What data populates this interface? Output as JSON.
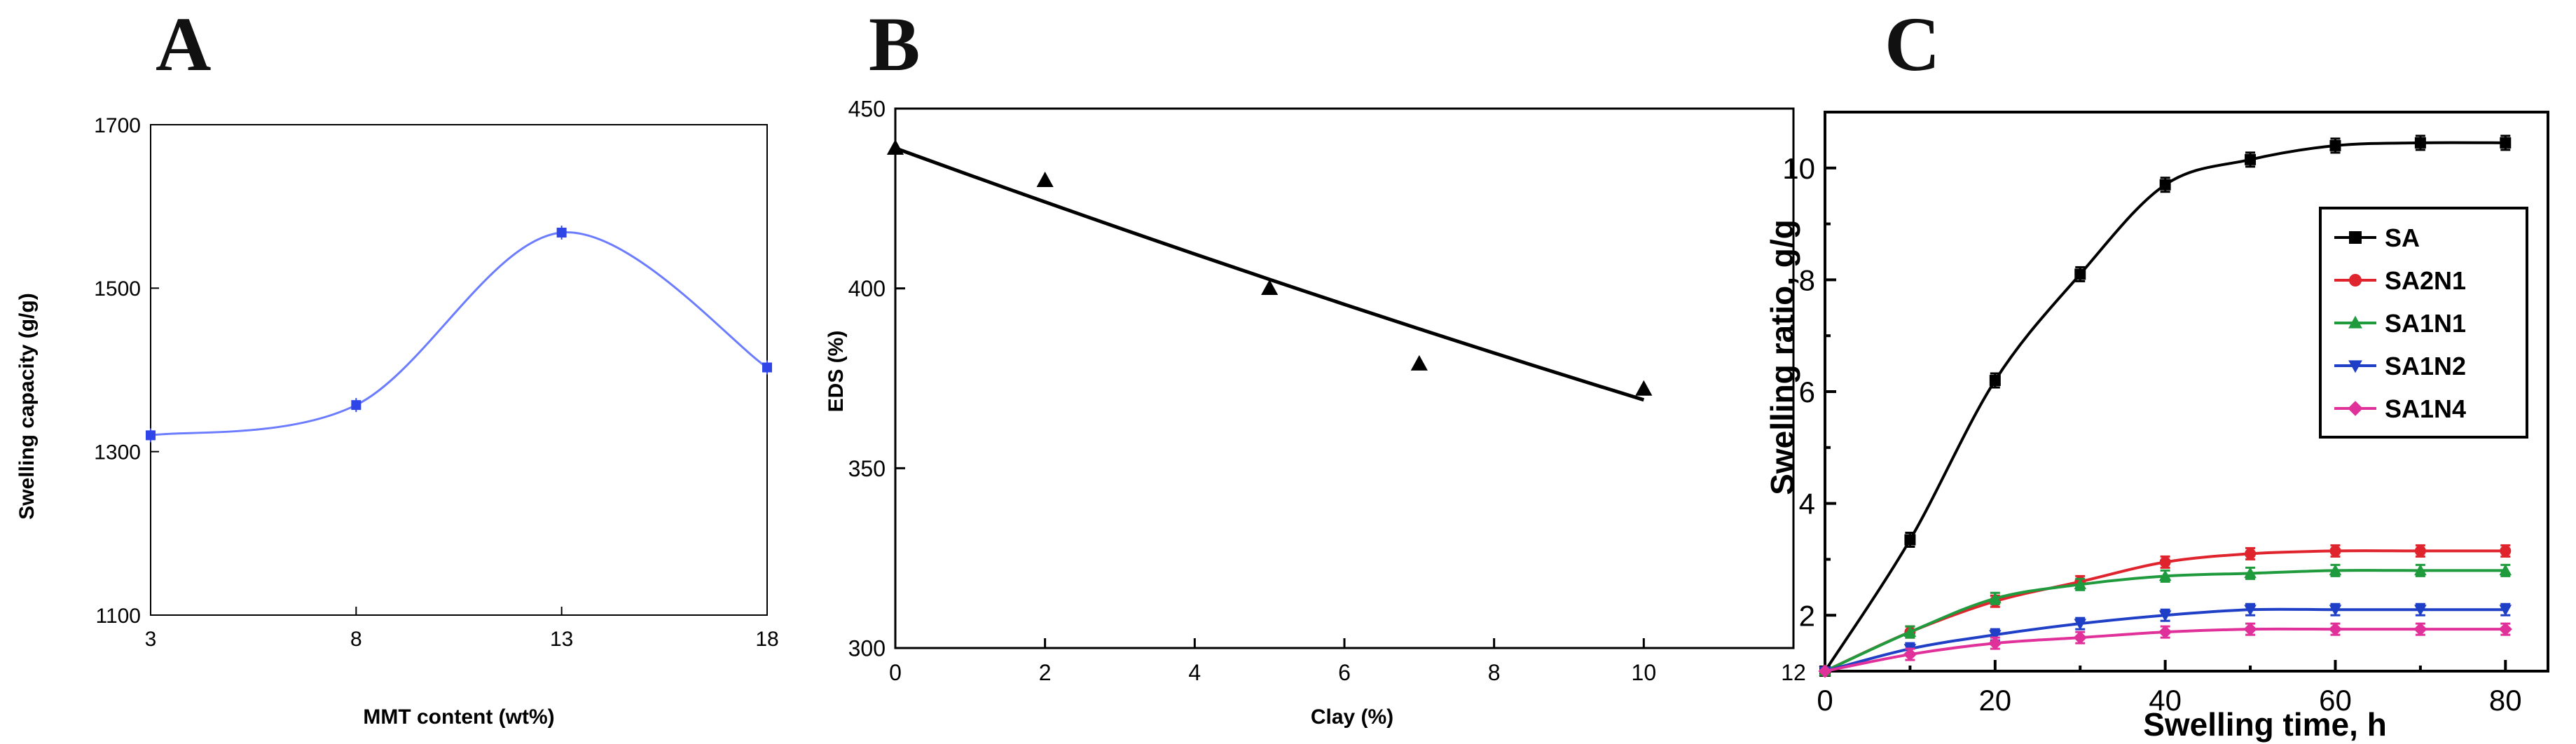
{
  "chart_data": [
    {
      "panel_label": "A",
      "type": "line",
      "xlabel": "MMT content (wt%)",
      "ylabel": "Swelling capacity (g/g)",
      "xlim": [
        3,
        18
      ],
      "ylim": [
        1100,
        1700
      ],
      "xticks": [
        3,
        8,
        13,
        18
      ],
      "yticks": [
        1100,
        1300,
        1500,
        1700
      ],
      "series": [
        {
          "x": [
            3,
            8,
            13,
            18
          ],
          "values": [
            1320,
            1357,
            1568,
            1403
          ],
          "color": "#6b7cff",
          "marker": "square"
        }
      ]
    },
    {
      "panel_label": "B",
      "type": "scatter",
      "xlabel": "Clay (%)",
      "ylabel": "EDS (%)",
      "xlim": [
        0,
        12
      ],
      "ylim": [
        300,
        450
      ],
      "xticks": [
        0,
        2,
        4,
        6,
        8,
        10,
        12
      ],
      "yticks": [
        300,
        350,
        400,
        450
      ],
      "series": [
        {
          "x": [
            0,
            2,
            5,
            7,
            10
          ],
          "values": [
            439,
            430,
            400,
            379,
            372
          ],
          "color": "#000000",
          "marker": "triangle"
        }
      ],
      "fit_line": {
        "x": [
          0,
          10
        ],
        "values": [
          439,
          369
        ],
        "color": "#000000"
      }
    },
    {
      "panel_label": "C",
      "type": "line",
      "xlabel": "Swelling time, h",
      "ylabel": "Swelling ratio, g/g",
      "xlim": [
        0,
        85
      ],
      "ylim": [
        1,
        11
      ],
      "xticks": [
        0,
        20,
        40,
        60,
        80
      ],
      "yticks": [
        2,
        4,
        6,
        8,
        10
      ],
      "legend_position": "top-right",
      "x": [
        0,
        10,
        20,
        30,
        40,
        50,
        60,
        70,
        80
      ],
      "series": [
        {
          "name": "SA",
          "values": [
            1.0,
            3.35,
            6.2,
            8.1,
            9.7,
            10.15,
            10.4,
            10.45,
            10.45
          ],
          "color": "#000000",
          "marker": "square"
        },
        {
          "name": "SA2N1",
          "values": [
            1.0,
            1.7,
            2.25,
            2.6,
            2.95,
            3.1,
            3.15,
            3.15,
            3.15
          ],
          "color": "#e0242e",
          "marker": "circle"
        },
        {
          "name": "SA1N1",
          "values": [
            1.0,
            1.7,
            2.3,
            2.55,
            2.7,
            2.75,
            2.8,
            2.8,
            2.8
          ],
          "color": "#1f9a3c",
          "marker": "triangle"
        },
        {
          "name": "SA1N2",
          "values": [
            1.0,
            1.4,
            1.65,
            1.85,
            2.0,
            2.1,
            2.1,
            2.1,
            2.1
          ],
          "color": "#1f3fc6",
          "marker": "triangle-down"
        },
        {
          "name": "SA1N4",
          "values": [
            1.0,
            1.3,
            1.5,
            1.6,
            1.7,
            1.75,
            1.75,
            1.75,
            1.75
          ],
          "color": "#e0309a",
          "marker": "diamond"
        }
      ]
    }
  ]
}
